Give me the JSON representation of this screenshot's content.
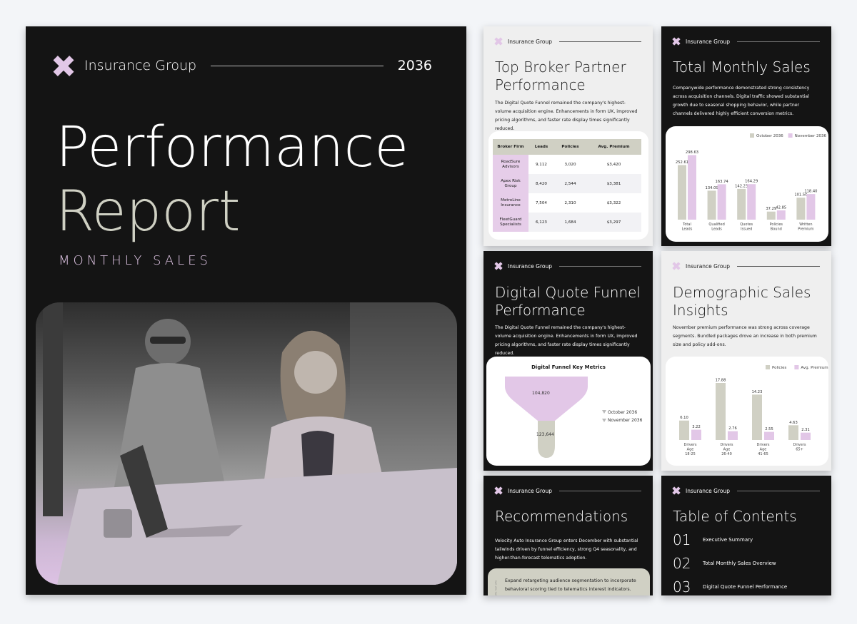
{
  "colors": {
    "dark_bg": "#141414",
    "light_bg": "#efefef",
    "lavender": "#e2c7e7",
    "sage": "#d0d0c4"
  },
  "cover": {
    "org": "Insurance Group",
    "year": "2036",
    "title_line1": "Performance",
    "title_line2": "Report",
    "subtitle": "MONTHLY SALES"
  },
  "header_org": "Insurance Group",
  "broker": {
    "title": "Top Broker Partner Performance",
    "body": "The Digital Quote Funnel remained the company's highest-volume acquisition engine. Enhancements in form UX, improved pricing algorithms, and faster rate display times significantly reduced.",
    "columns": [
      "Broker Firm",
      "Leads",
      "Policies",
      "Avg. Premium"
    ],
    "rows": [
      [
        "RoadSure Advisors",
        "9,112",
        "3,020",
        "$3,420"
      ],
      [
        "Apex Risk Group",
        "8,420",
        "2,544",
        "$3,381"
      ],
      [
        "MetroLine Insurance",
        "7,504",
        "2,310",
        "$3,322"
      ],
      [
        "FleetGuard Specialists",
        "6,123",
        "1,684",
        "$3,297"
      ]
    ]
  },
  "sales": {
    "title": "Total Monthly Sales",
    "body": "Companywide performance demonstrated strong consistency across acquisition channels. Digital traffic showed substantial growth due to seasonal shopping behavior, while partner channels delivered highly efficient conversion metrics."
  },
  "funnel": {
    "title": "Digital Quote Funnel Performance",
    "body": "The Digital Quote Funnel remained the company's highest-volume acquisition engine. Enhancements in form UX, improved pricing algorithms, and faster rate display times significantly reduced.",
    "chart_title": "Digital Funnel Key Metrics",
    "top_value": "104,820",
    "bottom_value": "123,644",
    "legend": [
      "October 2036",
      "November 2036"
    ]
  },
  "demo": {
    "title": "Demographic Sales Insights",
    "body": "November premium performance was strong across coverage segments. Bundled packages drove an increase in both premium size and policy add-ons."
  },
  "rec": {
    "title": "Recommendations",
    "body": "Velocity Auto Insurance Group enters December with substantial tailwinds driven by funnel efficiency, strong Q4 seasonality, and higher-than-forecast telematics adoption.",
    "item": "Expand retargeting audience segmentation to incorporate behavioral scoring tied to telematics interest indicators."
  },
  "toc": {
    "title": "Table of Contents",
    "items": [
      {
        "num": "01",
        "label": "Executive Summary"
      },
      {
        "num": "02",
        "label": "Total Monthly Sales Overview"
      },
      {
        "num": "03",
        "label": "Digital Quote Funnel Performance"
      }
    ]
  },
  "chart_data": [
    {
      "type": "bar",
      "categories": [
        "Total Leads",
        "Qualified Leads",
        "Quotes Issued",
        "Policies Bound",
        "Written Premium"
      ],
      "series": [
        {
          "name": "October 2036",
          "values": [
            252.61,
            134.09,
            142.23,
            37.29,
            101.5
          ],
          "color": "#d0d0c4"
        },
        {
          "name": "November 2036",
          "values": [
            298.63,
            163.74,
            164.29,
            42.85,
            118.4
          ],
          "color": "#e2c7e7"
        }
      ],
      "legend": "top-right",
      "ylim": [
        0,
        320
      ]
    },
    {
      "type": "bar",
      "categories": [
        "Drivers Age 18-25",
        "Drivers Age 26-40",
        "Drivers Age 41-65",
        "Drivers 65+"
      ],
      "series": [
        {
          "name": "Policies",
          "values": [
            6.1,
            17.88,
            14.23,
            4.63
          ],
          "color": "#d0d0c4"
        },
        {
          "name": "Avg. Premium",
          "values": [
            3.22,
            2.76,
            2.55,
            2.31
          ],
          "color": "#e2c7e7"
        }
      ],
      "legend": "top-right",
      "ylim": [
        0,
        19
      ]
    }
  ]
}
